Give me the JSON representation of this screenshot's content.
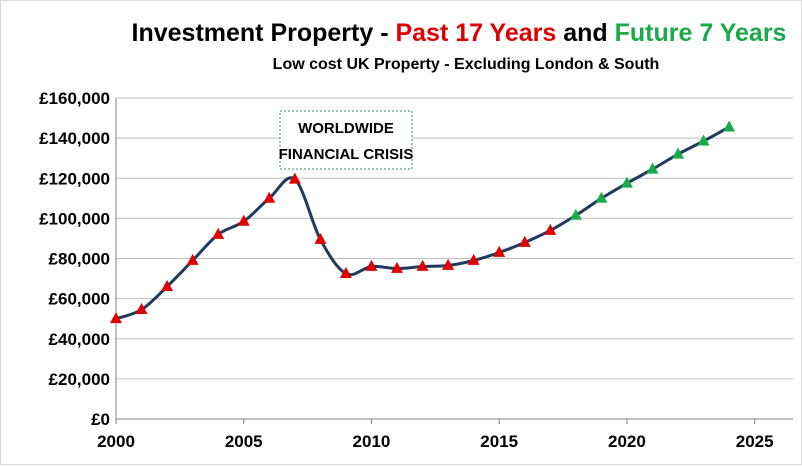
{
  "chart_data": {
    "type": "line",
    "title": {
      "prefix": "Investment Property - ",
      "past": "Past 17 Years",
      "middle": " and ",
      "future": "Future 7 Years"
    },
    "subtitle": "Low cost UK Property - Excluding London & South",
    "annotation": [
      "WORLDWIDE",
      "FINANCIAL CRISIS"
    ],
    "x_ticks": [
      "2000",
      "2005",
      "2010",
      "2015",
      "2020",
      "2025"
    ],
    "y_ticks": [
      "£0",
      "£20,000",
      "£40,000",
      "£60,000",
      "£80,000",
      "£100,000",
      "£120,000",
      "£140,000",
      "£160,000"
    ],
    "xlim": [
      2000,
      2026.5
    ],
    "ylim": [
      0,
      160000
    ],
    "grid": true,
    "legend": "none",
    "series": [
      {
        "label": "past",
        "color": "#e00000",
        "x": [
          2000,
          2001,
          2002,
          2003,
          2004,
          2005,
          2006,
          2007,
          2008,
          2009,
          2010,
          2011,
          2012,
          2013,
          2014,
          2015,
          2016,
          2017
        ],
        "y": [
          50000,
          54500,
          66000,
          79000,
          92000,
          98500,
          110000,
          119500,
          89500,
          72500,
          76000,
          75000,
          76000,
          76500,
          79000,
          83000,
          88000,
          94000
        ]
      },
      {
        "label": "future",
        "color": "#1aaa4a",
        "x": [
          2018,
          2019,
          2020,
          2021,
          2022,
          2023,
          2024
        ],
        "y": [
          101500,
          110000,
          117500,
          124500,
          132000,
          138500,
          145500
        ]
      }
    ],
    "line_color": "#1f3a5c",
    "colors": {
      "title_main": "#000000",
      "title_past": "#e00000",
      "title_future": "#1aaa4a",
      "annotation_border": "#2e8b57"
    }
  }
}
